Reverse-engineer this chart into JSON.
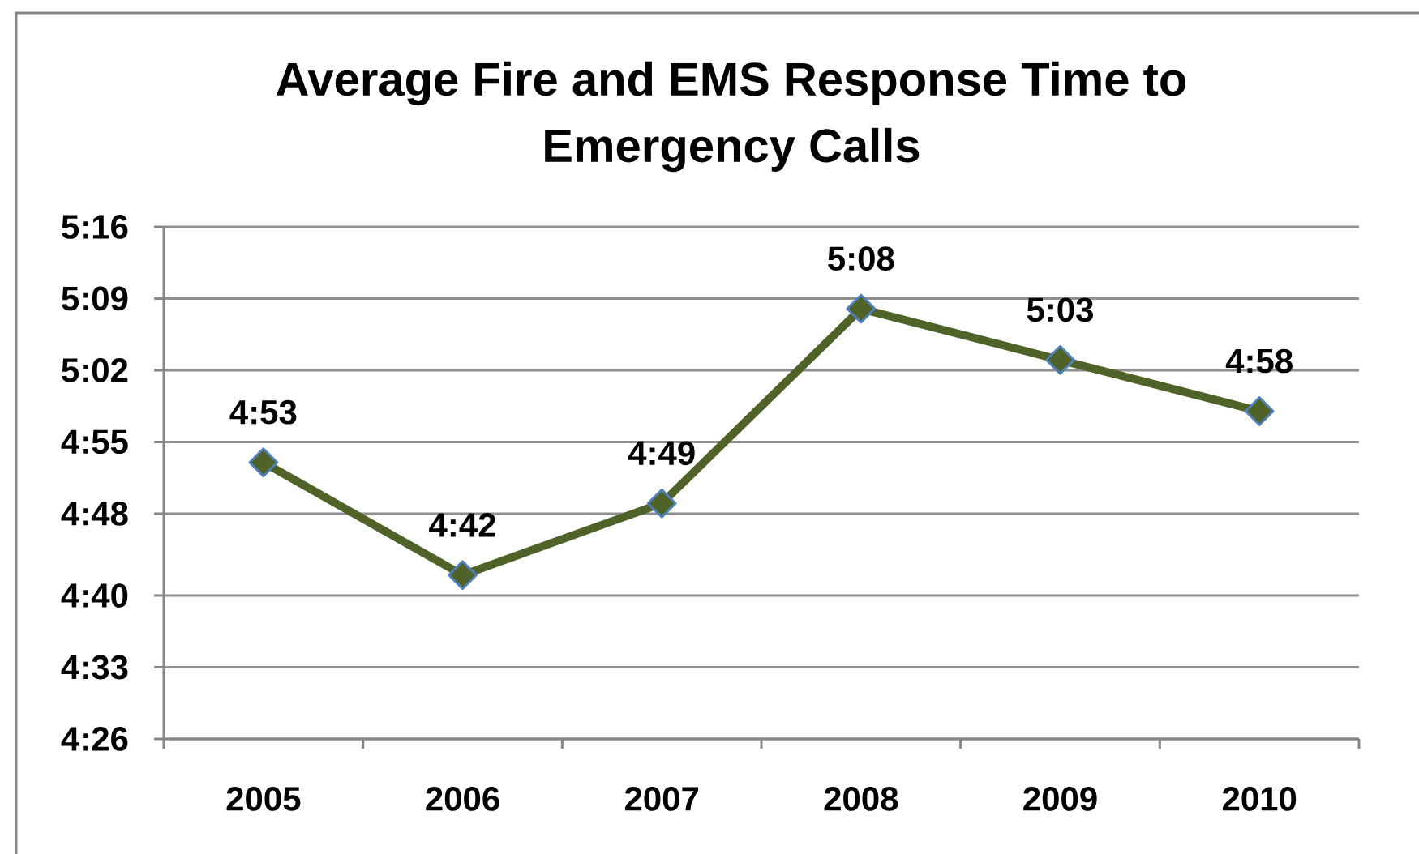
{
  "chart_data": {
    "type": "line",
    "title": "Average Fire and EMS Response Time to Emergency Calls",
    "categories": [
      "2005",
      "2006",
      "2007",
      "2008",
      "2009",
      "2010"
    ],
    "values": [
      293,
      282,
      289,
      308,
      303,
      298
    ],
    "value_labels": [
      "4:53",
      "4:42",
      "4:49",
      "5:08",
      "5:03",
      "4:58"
    ],
    "color": "#4f6228",
    "marker": "diamond",
    "line_style": "solid",
    "grid": "y",
    "ylim": [
      266,
      316
    ],
    "yticks": [
      {
        "value": 266,
        "label": "4:26"
      },
      {
        "value": 273,
        "label": "4:33"
      },
      {
        "value": 280,
        "label": "4:40"
      },
      {
        "value": 288,
        "label": "4:48"
      },
      {
        "value": 295,
        "label": "4:55"
      },
      {
        "value": 302,
        "label": "5:02"
      },
      {
        "value": 309,
        "label": "5:09"
      },
      {
        "value": 316,
        "label": "5:16"
      }
    ]
  }
}
